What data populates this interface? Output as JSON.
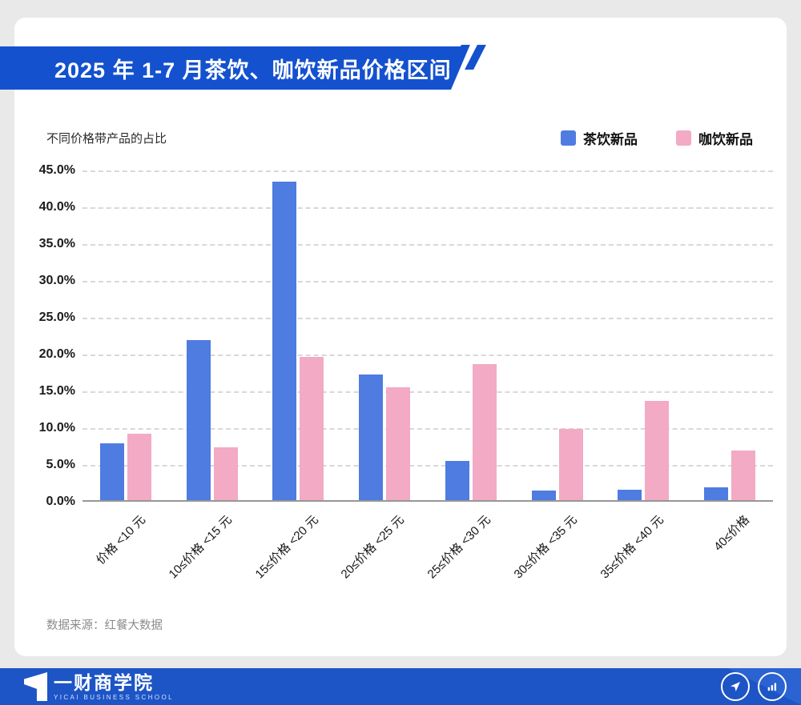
{
  "header": {
    "title": "2025 年 1-7 月茶饮、咖饮新品价格区间"
  },
  "subtitle": "不同价格带产品的占比",
  "legend": [
    {
      "label": "茶饮新品",
      "color": "#4e7ce1"
    },
    {
      "label": "咖饮新品",
      "color": "#f2aac5"
    }
  ],
  "chart_data": {
    "type": "bar",
    "title": "2025 年 1-7 月茶饮、咖饮新品价格区间",
    "ylabel": "不同价格带产品的占比",
    "categories": [
      "价格 <10 元",
      "10≤价格 <15 元",
      "15≤价格 <20 元",
      "20≤价格 <25 元",
      "25≤价格 <30 元",
      "30≤价格 <35 元",
      "35≤价格 <40 元",
      "40≤价格"
    ],
    "series": [
      {
        "name": "茶饮新品",
        "color": "#4e7ce1",
        "values": [
          7.8,
          21.8,
          43.5,
          17.2,
          5.4,
          1.3,
          1.4,
          1.8
        ]
      },
      {
        "name": "咖饮新品",
        "color": "#f2aac5",
        "values": [
          9.1,
          7.2,
          19.5,
          15.4,
          18.6,
          9.7,
          13.5,
          6.8
        ]
      }
    ],
    "ylim": [
      0,
      45
    ],
    "y_ticks": [
      "45.0%",
      "40.0%",
      "35.0%",
      "30.0%",
      "25.0%",
      "20.0%",
      "15.0%",
      "10.0%",
      "5.0%",
      "0.0%"
    ],
    "grid": "horizontal-dashed",
    "legend_position": "top-right"
  },
  "source": {
    "label": "数据来源：红餐大数据"
  },
  "footer": {
    "brand_cn": "一财商学院",
    "brand_en": "YICAI BUSINESS SCHOOL"
  },
  "colors": {
    "background": "#e9e9e9",
    "banner_blue": "#1451cf",
    "footer_blue": "#1d54c6",
    "tea_blue": "#4e7ce1",
    "coffee_pink": "#f2aac5"
  }
}
